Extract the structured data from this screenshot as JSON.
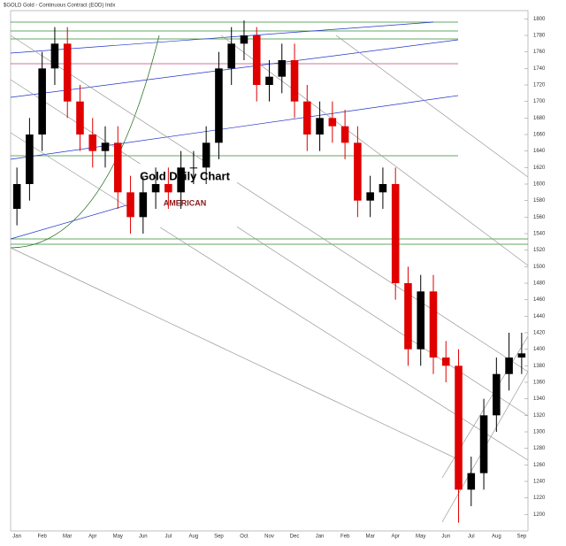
{
  "header": "$GOLD Gold - Continuous Contract (EOD) Indx",
  "logo": "AMERICAN",
  "chart_data": {
    "type": "candlestick",
    "title": "Gold Daily Chart",
    "categories": [
      "Jan",
      null,
      "Feb",
      null,
      "Mar",
      null,
      "Apr",
      null,
      "May",
      null,
      "Jun",
      null,
      "Jul",
      null,
      "Aug",
      null,
      "Sep",
      null,
      "Oct",
      null,
      "Nov",
      null,
      "Dec",
      null,
      "Jan",
      null,
      "Feb",
      null,
      "Mar",
      null,
      "Apr",
      null,
      "May",
      null,
      "Jun",
      null,
      "Jul",
      null,
      "Aug",
      null,
      "Sep"
    ],
    "open": [
      1570,
      1600,
      1660,
      1740,
      1770,
      1700,
      1660,
      1640,
      1650,
      1590,
      1560,
      1590,
      1600,
      1590,
      1620,
      1620,
      1650,
      1740,
      1770,
      1780,
      1720,
      1730,
      1750,
      1700,
      1660,
      1680,
      1670,
      1650,
      1580,
      1590,
      1600,
      1480,
      1400,
      1470,
      1390,
      1380,
      1230,
      1250,
      1320,
      1370,
      1390
    ],
    "high": [
      1620,
      1680,
      1760,
      1790,
      1790,
      1720,
      1680,
      1670,
      1670,
      1610,
      1610,
      1620,
      1620,
      1640,
      1640,
      1670,
      1760,
      1790,
      1798,
      1790,
      1750,
      1770,
      1770,
      1720,
      1700,
      1700,
      1690,
      1670,
      1610,
      1620,
      1620,
      1500,
      1490,
      1490,
      1410,
      1400,
      1270,
      1340,
      1390,
      1420,
      1420
    ],
    "low": [
      1550,
      1580,
      1640,
      1720,
      1680,
      1640,
      1620,
      1620,
      1570,
      1540,
      1540,
      1570,
      1570,
      1570,
      1600,
      1600,
      1630,
      1720,
      1750,
      1700,
      1700,
      1710,
      1680,
      1640,
      1640,
      1650,
      1630,
      1560,
      1560,
      1570,
      1460,
      1380,
      1380,
      1370,
      1360,
      1190,
      1210,
      1230,
      1300,
      1350,
      1370
    ],
    "close": [
      1600,
      1660,
      1740,
      1770,
      1700,
      1660,
      1640,
      1650,
      1590,
      1560,
      1590,
      1600,
      1590,
      1620,
      1620,
      1650,
      1740,
      1770,
      1780,
      1720,
      1730,
      1750,
      1700,
      1660,
      1680,
      1670,
      1650,
      1580,
      1590,
      1600,
      1480,
      1400,
      1470,
      1390,
      1380,
      1230,
      1250,
      1320,
      1370,
      1390,
      1395
    ],
    "up_color": "#000000",
    "down_color": "#e00000",
    "ylim": [
      1180,
      1810
    ],
    "yticks": [
      1200,
      1220,
      1240,
      1260,
      1280,
      1300,
      1320,
      1340,
      1360,
      1380,
      1400,
      1420,
      1440,
      1460,
      1480,
      1500,
      1520,
      1540,
      1560,
      1580,
      1600,
      1620,
      1640,
      1660,
      1680,
      1700,
      1720,
      1740,
      1760,
      1780,
      1800
    ],
    "grid": true
  }
}
